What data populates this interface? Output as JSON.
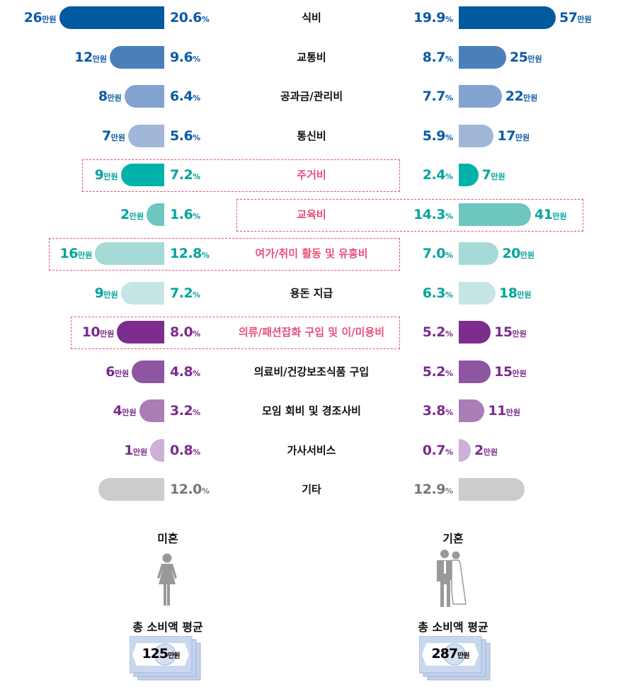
{
  "chart_data": {
    "type": "bar",
    "layout": "butterfly",
    "unit_amount": "만원",
    "unit_percent": "%",
    "categories": [
      "식비",
      "교통비",
      "공과금/관리비",
      "통신비",
      "주거비",
      "교육비",
      "여가/취미 활동 및 유흥비",
      "용돈 지급",
      "의류/패션잡화 구입 및 이/미용비",
      "의료비/건강보조식품 구입",
      "모임 회비 및 경조사비",
      "가사서비스",
      "기타"
    ],
    "highlighted": {
      "주거비": "left",
      "교육비": "right",
      "여가/취미 활동 및 유흥비": "left",
      "의류/패션잡화 구입 및 이/미용비": "left"
    },
    "series": [
      {
        "name": "미혼",
        "percent": [
          20.6,
          9.6,
          6.4,
          5.6,
          7.2,
          1.6,
          12.8,
          7.2,
          8.0,
          4.8,
          3.2,
          0.8,
          12.0
        ],
        "amount": [
          26,
          12,
          8,
          7,
          9,
          2,
          16,
          9,
          10,
          6,
          4,
          1,
          null
        ]
      },
      {
        "name": "기혼",
        "percent": [
          19.9,
          8.7,
          7.7,
          5.9,
          2.4,
          14.3,
          7.0,
          6.3,
          5.2,
          5.2,
          3.8,
          0.7,
          12.9
        ],
        "amount": [
          57,
          25,
          22,
          17,
          7,
          41,
          20,
          18,
          15,
          15,
          11,
          2,
          null
        ]
      }
    ],
    "bar_colors": [
      "#005aa0",
      "#4a80ba",
      "#82a3cf",
      "#a0b7da",
      "#00b2a9",
      "#6ec6c0",
      "#a5dad6",
      "#c7e5e4",
      "#7d2d8e",
      "#8e55a0",
      "#aa7db7",
      "#cdb0d8",
      "#cccccc"
    ],
    "text_colors": [
      "#0b5ba8",
      "#0b5ba8",
      "#0b5ba8",
      "#0b5ba8",
      "#00a59b",
      "#00a59b",
      "#00a59b",
      "#00a59b",
      "#7a2a8c",
      "#7a2a8c",
      "#7a2a8c",
      "#7a2a8c",
      "#777777"
    ],
    "highlight_color": "#e8507a"
  },
  "groups": {
    "left": {
      "title": "미혼",
      "icon": "woman-icon",
      "total_label": "총 소비액 평균",
      "total": "125",
      "total_unit": "만원"
    },
    "right": {
      "title": "기혼",
      "icon": "bride-groom-icon",
      "total_label": "총 소비액 평균",
      "total": "287",
      "total_unit": "만원"
    }
  }
}
